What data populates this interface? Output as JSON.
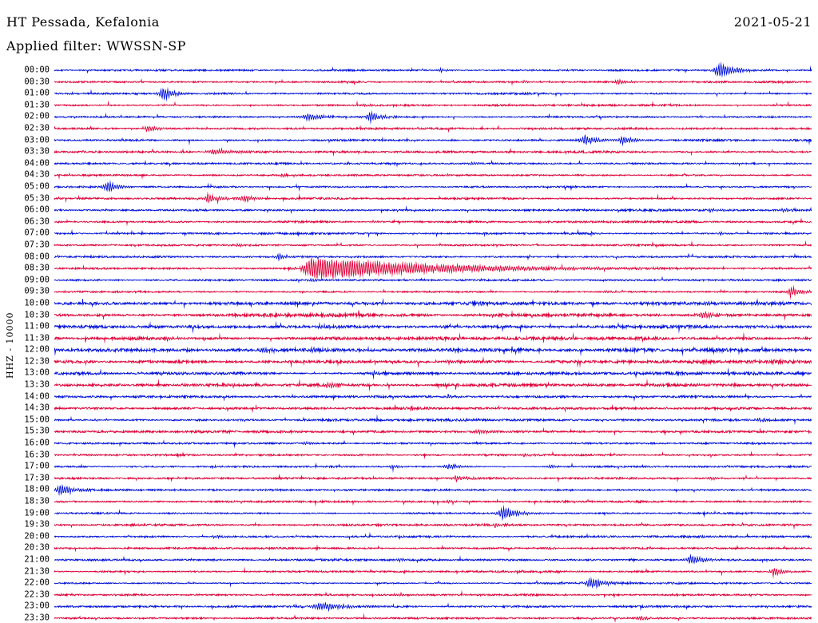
{
  "header": {
    "station_line": "HT Pessada, Kefalonia",
    "date": "2021-05-21",
    "filter_line": "Applied filter: WWSSN-SP"
  },
  "chart_data": {
    "type": "line",
    "kind": "helicorder-seismogram",
    "title": "HT Pessada, Kefalonia",
    "date": "2021-05-21",
    "filter": "WWSSN-SP",
    "y_axis_label": "HHZ - 10000",
    "channel": "HHZ",
    "scale": 10000,
    "minutes_per_row": 30,
    "start_time": "00:00",
    "end_time": "23:30",
    "legend_position": "none",
    "grid": false,
    "colors": {
      "blue": "#0010dc",
      "red": "#e00038"
    },
    "noise_seed": 42,
    "noise_base": 0.9,
    "noise_boost": {
      "11": 1.15,
      "12": 1.1,
      "20": 1.7,
      "21": 1.7,
      "22": 1.7,
      "23": 1.7,
      "24": 1.8,
      "25": 1.7,
      "26": 1.6,
      "27": 1.6,
      "28": 1.25,
      "29": 1.25,
      "30": 1.2,
      "31": 1.2
    },
    "rows": [
      {
        "label": "00:00",
        "color": "blue"
      },
      {
        "label": "00:30",
        "color": "red"
      },
      {
        "label": "01:00",
        "color": "blue"
      },
      {
        "label": "01:30",
        "color": "red"
      },
      {
        "label": "02:00",
        "color": "blue"
      },
      {
        "label": "02:30",
        "color": "red"
      },
      {
        "label": "03:00",
        "color": "blue"
      },
      {
        "label": "03:30",
        "color": "red"
      },
      {
        "label": "04:00",
        "color": "blue"
      },
      {
        "label": "04:30",
        "color": "red"
      },
      {
        "label": "05:00",
        "color": "blue"
      },
      {
        "label": "05:30",
        "color": "red"
      },
      {
        "label": "06:00",
        "color": "blue"
      },
      {
        "label": "06:30",
        "color": "red"
      },
      {
        "label": "07:00",
        "color": "blue"
      },
      {
        "label": "07:30",
        "color": "red"
      },
      {
        "label": "08:00",
        "color": "blue"
      },
      {
        "label": "08:30",
        "color": "red"
      },
      {
        "label": "09:00",
        "color": "blue"
      },
      {
        "label": "09:30",
        "color": "red"
      },
      {
        "label": "10:00",
        "color": "blue"
      },
      {
        "label": "10:30",
        "color": "red"
      },
      {
        "label": "11:00",
        "color": "blue"
      },
      {
        "label": "11:30",
        "color": "red"
      },
      {
        "label": "12:00",
        "color": "blue"
      },
      {
        "label": "12:30",
        "color": "red"
      },
      {
        "label": "13:00",
        "color": "blue"
      },
      {
        "label": "13:30",
        "color": "red"
      },
      {
        "label": "14:00",
        "color": "blue"
      },
      {
        "label": "14:30",
        "color": "red"
      },
      {
        "label": "15:00",
        "color": "blue"
      },
      {
        "label": "15:30",
        "color": "red"
      },
      {
        "label": "16:00",
        "color": "blue"
      },
      {
        "label": "16:30",
        "color": "red"
      },
      {
        "label": "17:00",
        "color": "blue"
      },
      {
        "label": "17:30",
        "color": "red"
      },
      {
        "label": "18:00",
        "color": "blue"
      },
      {
        "label": "18:30",
        "color": "red"
      },
      {
        "label": "19:00",
        "color": "blue"
      },
      {
        "label": "19:30",
        "color": "red"
      },
      {
        "label": "20:00",
        "color": "blue"
      },
      {
        "label": "20:30",
        "color": "red"
      },
      {
        "label": "21:00",
        "color": "blue"
      },
      {
        "label": "21:30",
        "color": "red"
      },
      {
        "label": "22:00",
        "color": "blue"
      },
      {
        "label": "22:30",
        "color": "red"
      },
      {
        "label": "23:00",
        "color": "blue"
      },
      {
        "label": "23:30",
        "color": "red"
      }
    ],
    "events": [
      {
        "row": 0,
        "pos": 0.878,
        "amp": 11,
        "width": 10
      },
      {
        "row": 0,
        "pos": 0.51,
        "amp": 2.5,
        "width": 6
      },
      {
        "row": 1,
        "pos": 0.745,
        "amp": 3.5,
        "width": 8
      },
      {
        "row": 1,
        "pos": 0.62,
        "amp": 2,
        "width": 5
      },
      {
        "row": 2,
        "pos": 0.143,
        "amp": 9,
        "width": 8
      },
      {
        "row": 3,
        "pos": 0.41,
        "amp": 2,
        "width": 5
      },
      {
        "row": 4,
        "pos": 0.333,
        "amp": 5,
        "width": 10
      },
      {
        "row": 4,
        "pos": 0.416,
        "amp": 6.5,
        "width": 9
      },
      {
        "row": 5,
        "pos": 0.122,
        "amp": 4.5,
        "width": 9
      },
      {
        "row": 6,
        "pos": 0.7,
        "amp": 7,
        "width": 9
      },
      {
        "row": 6,
        "pos": 0.75,
        "amp": 6,
        "width": 8
      },
      {
        "row": 7,
        "pos": 0.21,
        "amp": 3.5,
        "width": 18
      },
      {
        "row": 8,
        "pos": 0.55,
        "amp": 2.5,
        "width": 6
      },
      {
        "row": 9,
        "pos": 0.3,
        "amp": 2,
        "width": 6
      },
      {
        "row": 10,
        "pos": 0.07,
        "amp": 7.5,
        "width": 8
      },
      {
        "row": 11,
        "pos": 0.202,
        "amp": 6,
        "width": 9
      },
      {
        "row": 11,
        "pos": 0.249,
        "amp": 5,
        "width": 8
      },
      {
        "row": 12,
        "pos": 0.866,
        "amp": 2.5,
        "width": 6
      },
      {
        "row": 12,
        "pos": 0.962,
        "amp": 2.5,
        "width": 6
      },
      {
        "row": 13,
        "pos": 0.42,
        "amp": 2,
        "width": 5
      },
      {
        "row": 14,
        "pos": 0.88,
        "amp": 2,
        "width": 5
      },
      {
        "row": 15,
        "pos": 0.24,
        "amp": 2.2,
        "width": 6
      },
      {
        "row": 16,
        "pos": 0.296,
        "amp": 4,
        "width": 9
      },
      {
        "row": 17,
        "pos": 0.34,
        "amp": 15,
        "width": 18,
        "decay": 150
      },
      {
        "row": 18,
        "pos": 0.34,
        "amp": 2,
        "width": 8
      },
      {
        "row": 19,
        "pos": 0.73,
        "amp": 2.5,
        "width": 6
      },
      {
        "row": 19,
        "pos": 0.972,
        "amp": 7,
        "width": 8
      },
      {
        "row": 20,
        "pos": 0.86,
        "amp": 2.5,
        "width": 8
      },
      {
        "row": 21,
        "pos": 0.855,
        "amp": 4,
        "width": 10
      },
      {
        "row": 22,
        "pos": 0.35,
        "amp": 2.5,
        "width": 8
      },
      {
        "row": 23,
        "pos": 0.15,
        "amp": 2.5,
        "width": 8
      },
      {
        "row": 24,
        "pos": 0.28,
        "amp": 3,
        "width": 8
      },
      {
        "row": 24,
        "pos": 0.34,
        "amp": 3,
        "width": 8
      },
      {
        "row": 25,
        "pos": 0.52,
        "amp": 2.5,
        "width": 8
      },
      {
        "row": 26,
        "pos": 0.42,
        "amp": 2.5,
        "width": 8
      },
      {
        "row": 27,
        "pos": 0.36,
        "amp": 3.5,
        "width": 10
      },
      {
        "row": 28,
        "pos": 0.52,
        "amp": 2.5,
        "width": 6
      },
      {
        "row": 29,
        "pos": 0.47,
        "amp": 2,
        "width": 6
      },
      {
        "row": 30,
        "pos": 0.93,
        "amp": 2.5,
        "width": 6
      },
      {
        "row": 31,
        "pos": 0.56,
        "amp": 3,
        "width": 8
      },
      {
        "row": 32,
        "pos": 0.33,
        "amp": 2.5,
        "width": 6
      },
      {
        "row": 33,
        "pos": 0.62,
        "amp": 2,
        "width": 6
      },
      {
        "row": 34,
        "pos": 0.445,
        "amp": 2.5,
        "width": 6
      },
      {
        "row": 34,
        "pos": 0.52,
        "amp": 4,
        "width": 9
      },
      {
        "row": 34,
        "pos": 0.655,
        "amp": 2.5,
        "width": 6
      },
      {
        "row": 35,
        "pos": 0.53,
        "amp": 4,
        "width": 9
      },
      {
        "row": 35,
        "pos": 0.868,
        "amp": 2.5,
        "width": 6
      },
      {
        "row": 36,
        "pos": 0.008,
        "amp": 8,
        "width": 9
      },
      {
        "row": 37,
        "pos": 0.52,
        "amp": 2,
        "width": 6
      },
      {
        "row": 38,
        "pos": 0.592,
        "amp": 9,
        "width": 10
      },
      {
        "row": 39,
        "pos": 0.582,
        "amp": 3,
        "width": 7
      },
      {
        "row": 40,
        "pos": 0.21,
        "amp": 2.5,
        "width": 6
      },
      {
        "row": 41,
        "pos": 0.65,
        "amp": 2,
        "width": 6
      },
      {
        "row": 42,
        "pos": 0.455,
        "amp": 2.5,
        "width": 6
      },
      {
        "row": 42,
        "pos": 0.84,
        "amp": 7,
        "width": 9
      },
      {
        "row": 43,
        "pos": 0.949,
        "amp": 6,
        "width": 8
      },
      {
        "row": 44,
        "pos": 0.708,
        "amp": 9,
        "width": 9
      },
      {
        "row": 45,
        "pos": 0.45,
        "amp": 2,
        "width": 6
      },
      {
        "row": 46,
        "pos": 0.35,
        "amp": 5,
        "width": 22
      },
      {
        "row": 47,
        "pos": 0.77,
        "amp": 3,
        "width": 7
      }
    ]
  }
}
